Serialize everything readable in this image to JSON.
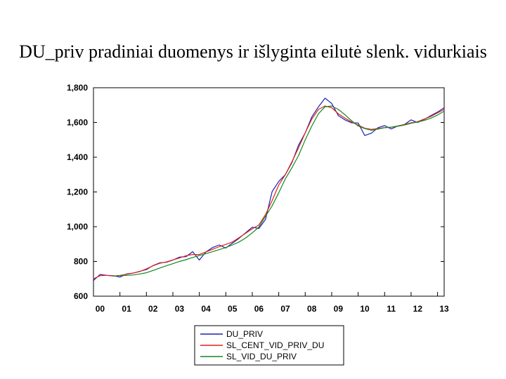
{
  "chart_data": {
    "type": "line",
    "title": "DU_priv pradiniai duomenys ir išlyginta eilutė slenk. vidurkiais",
    "xlabel": "",
    "ylabel": "",
    "ylim": [
      600,
      1800
    ],
    "yticks": [
      600,
      800,
      1000,
      1200,
      1400,
      1600,
      1800
    ],
    "ytick_labels": [
      "600",
      "800",
      "1,000",
      "1,200",
      "1,400",
      "1,600",
      "1,800"
    ],
    "xlim": [
      2000.0,
      2013.25
    ],
    "xticks": [
      2000.25,
      2001.25,
      2002.25,
      2003.25,
      2004.25,
      2005.25,
      2006.25,
      2007.25,
      2008.25,
      2009.25,
      2010.25,
      2011.25,
      2012.25,
      2013.25
    ],
    "xtick_labels": [
      "00",
      "01",
      "02",
      "03",
      "04",
      "05",
      "06",
      "07",
      "08",
      "09",
      "10",
      "11",
      "12",
      "13"
    ],
    "legend_position": "bottom-center",
    "grid": false,
    "x": [
      2000.0,
      2000.25,
      2000.5,
      2000.75,
      2001.0,
      2001.25,
      2001.5,
      2001.75,
      2002.0,
      2002.25,
      2002.5,
      2002.75,
      2003.0,
      2003.25,
      2003.5,
      2003.75,
      2004.0,
      2004.25,
      2004.5,
      2004.75,
      2005.0,
      2005.25,
      2005.5,
      2005.75,
      2006.0,
      2006.25,
      2006.5,
      2006.75,
      2007.0,
      2007.25,
      2007.5,
      2007.75,
      2008.0,
      2008.25,
      2008.5,
      2008.75,
      2009.0,
      2009.25,
      2009.5,
      2009.75,
      2010.0,
      2010.25,
      2010.5,
      2010.75,
      2011.0,
      2011.25,
      2011.5,
      2011.75,
      2012.0,
      2012.25,
      2012.5,
      2012.75,
      2013.0,
      2013.25
    ],
    "series": [
      {
        "name": "DU_PRIV",
        "color": "#1f1fb4",
        "values": [
          690,
          725,
          720,
          718,
          710,
          728,
          733,
          743,
          753,
          776,
          792,
          795,
          808,
          825,
          828,
          856,
          808,
          855,
          880,
          895,
          877,
          905,
          933,
          965,
          997,
          990,
          1042,
          1202,
          1260,
          1300,
          1370,
          1470,
          1540,
          1632,
          1690,
          1740,
          1710,
          1640,
          1615,
          1598,
          1597,
          1525,
          1538,
          1570,
          1582,
          1563,
          1580,
          1588,
          1615,
          1600,
          1618,
          1640,
          1660,
          1685
        ]
      },
      {
        "name": "SL_CENT_VID_PRIV_DU",
        "color": "#e0201c",
        "values": [
          700,
          718,
          720,
          716,
          720,
          726,
          733,
          742,
          757,
          775,
          789,
          797,
          809,
          820,
          833,
          840,
          840,
          855,
          870,
          885,
          898,
          912,
          937,
          962,
          988,
          1010,
          1070,
          1150,
          1240,
          1300,
          1375,
          1455,
          1540,
          1620,
          1675,
          1695,
          1685,
          1650,
          1625,
          1603,
          1585,
          1567,
          1560,
          1565,
          1570,
          1573,
          1580,
          1588,
          1598,
          1605,
          1620,
          1635,
          1655,
          1675
        ]
      },
      {
        "name": "SL_VID_DU_PRIV",
        "color": "#118a1f",
        "values": [
          null,
          null,
          null,
          715,
          718,
          720,
          722,
          728,
          735,
          748,
          762,
          775,
          787,
          800,
          810,
          823,
          834,
          845,
          856,
          868,
          880,
          895,
          912,
          935,
          965,
          998,
          1060,
          1120,
          1195,
          1275,
          1340,
          1410,
          1500,
          1580,
          1650,
          1690,
          1695,
          1675,
          1645,
          1610,
          1580,
          1565,
          1555,
          1562,
          1570,
          1573,
          1578,
          1585,
          1595,
          1603,
          1612,
          1625,
          1643,
          1665
        ]
      }
    ]
  }
}
